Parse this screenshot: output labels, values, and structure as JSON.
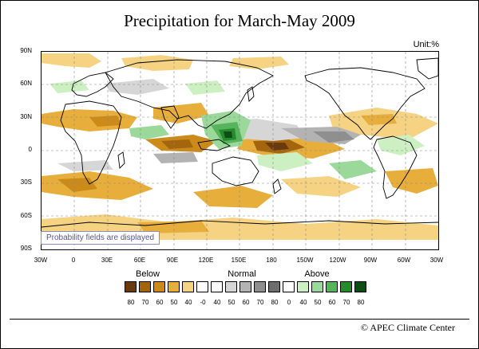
{
  "title": "Precipitation for March-May 2009",
  "unit": "Unit:%",
  "lat_labels": [
    "90N",
    "60N",
    "30N",
    "0",
    "30S",
    "60S",
    "90S"
  ],
  "lon_labels": [
    "30W",
    "0",
    "30E",
    "60E",
    "90E",
    "120E",
    "150E",
    "180",
    "150W",
    "120W",
    "90W",
    "60W",
    "30W"
  ],
  "probability_note": "Probability fields are displayed",
  "legend": {
    "below_label": "Below",
    "normal_label": "Normal",
    "above_label": "Above",
    "ticks": [
      "80",
      "70",
      "60",
      "50",
      "40",
      "-0",
      "40",
      "50",
      "60",
      "70",
      "80",
      "0",
      "40",
      "50",
      "60",
      "70",
      "80"
    ],
    "colors": [
      "#6b3a0c",
      "#a5650f",
      "#cc8a18",
      "#e7ae3b",
      "#f6d283",
      "#ffffff",
      "#ffffff",
      "#d6d6d6",
      "#b3b3b3",
      "#8f8f8f",
      "#6e6e6e",
      "#ffffff",
      "#cdf0c2",
      "#9ad99a",
      "#57b35c",
      "#258c2c",
      "#0e4d14"
    ]
  },
  "credit": "© APEC Climate Center"
}
